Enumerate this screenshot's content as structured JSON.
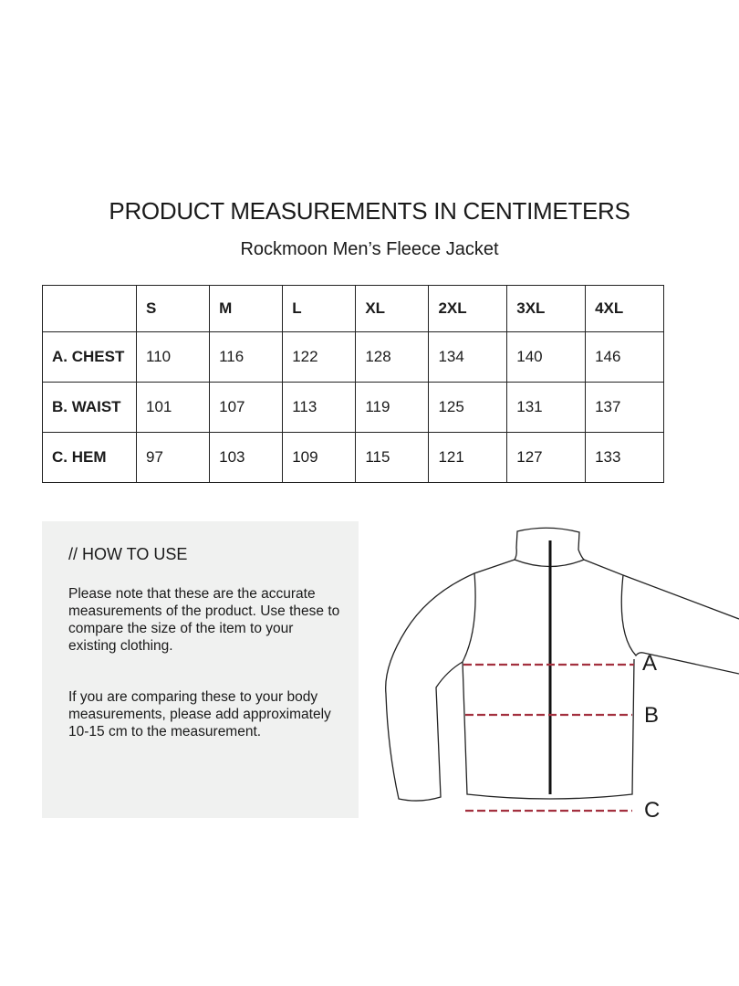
{
  "title": "PRODUCT MEASUREMENTS IN CENTIMETERS",
  "subtitle": "Rockmoon Men’s Fleece Jacket",
  "table": {
    "headers": [
      "",
      "S",
      "M",
      "L",
      "XL",
      "2XL",
      "3XL",
      "4XL"
    ],
    "rows": [
      {
        "label": "A. CHEST",
        "values": [
          "110",
          "116",
          "122",
          "128",
          "134",
          "140",
          "146"
        ]
      },
      {
        "label": "B. WAIST",
        "values": [
          "101",
          "107",
          "113",
          "119",
          "125",
          "131",
          "137"
        ]
      },
      {
        "label": "C. HEM",
        "values": [
          "97",
          "103",
          "109",
          "115",
          "121",
          "127",
          "133"
        ]
      }
    ]
  },
  "how_to_use": {
    "heading": "// HOW TO USE",
    "paragraph1": "Please note that these are the accurate measurements of the product. Use these to compare the size of the item to your existing clothing.",
    "paragraph2": "If you are comparing these to your body measurements, please add approximately 10-15 cm to the measurement."
  },
  "diagram": {
    "labels": [
      "A",
      "B",
      "C"
    ],
    "measure_line_color": "#a3303f",
    "outline_color": "#222222"
  }
}
